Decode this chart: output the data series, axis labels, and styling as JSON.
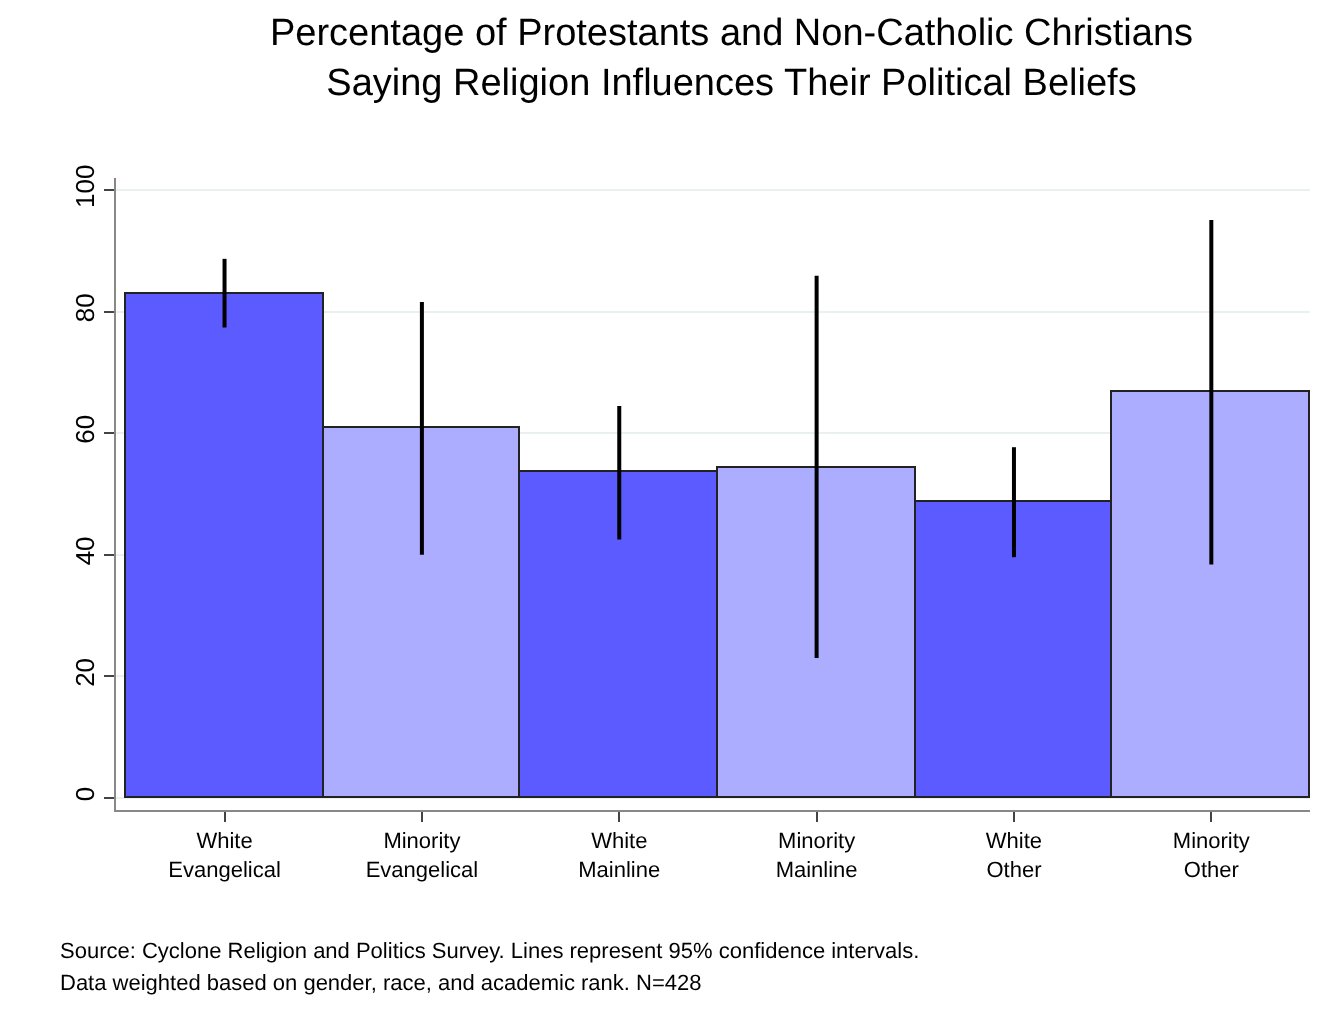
{
  "chart_data": {
    "type": "bar",
    "title": "Percentage of Protestants and Non-Catholic Christians\nSaying Religion Influences Their Political Beliefs",
    "categories": [
      "White\nEvangelical",
      "Minority\nEvangelical",
      "White\nMainline",
      "Minority\nMainline",
      "White\nOther",
      "Minority\nOther"
    ],
    "values": [
      83.0,
      60.9,
      53.5,
      54.4,
      48.7,
      66.7
    ],
    "colors": [
      "#5b5bff",
      "#adadff",
      "#5b5bff",
      "#adadff",
      "#5b5bff",
      "#adadff"
    ],
    "errors": [
      [
        77.4,
        88.7
      ],
      [
        40.0,
        81.6
      ],
      [
        42.5,
        64.5
      ],
      [
        23.0,
        85.9
      ],
      [
        39.6,
        57.7
      ],
      [
        38.4,
        95.1
      ]
    ],
    "ylim": [
      -2,
      102
    ],
    "yticks": [
      0,
      20,
      40,
      60,
      80,
      100
    ],
    "grid": "y",
    "annotations": [
      "Source: Cyclone Religion and Politics Survey. Lines represent 95% confidence intervals.",
      "Data weighted based on gender, race, and academic rank. N=428"
    ]
  }
}
